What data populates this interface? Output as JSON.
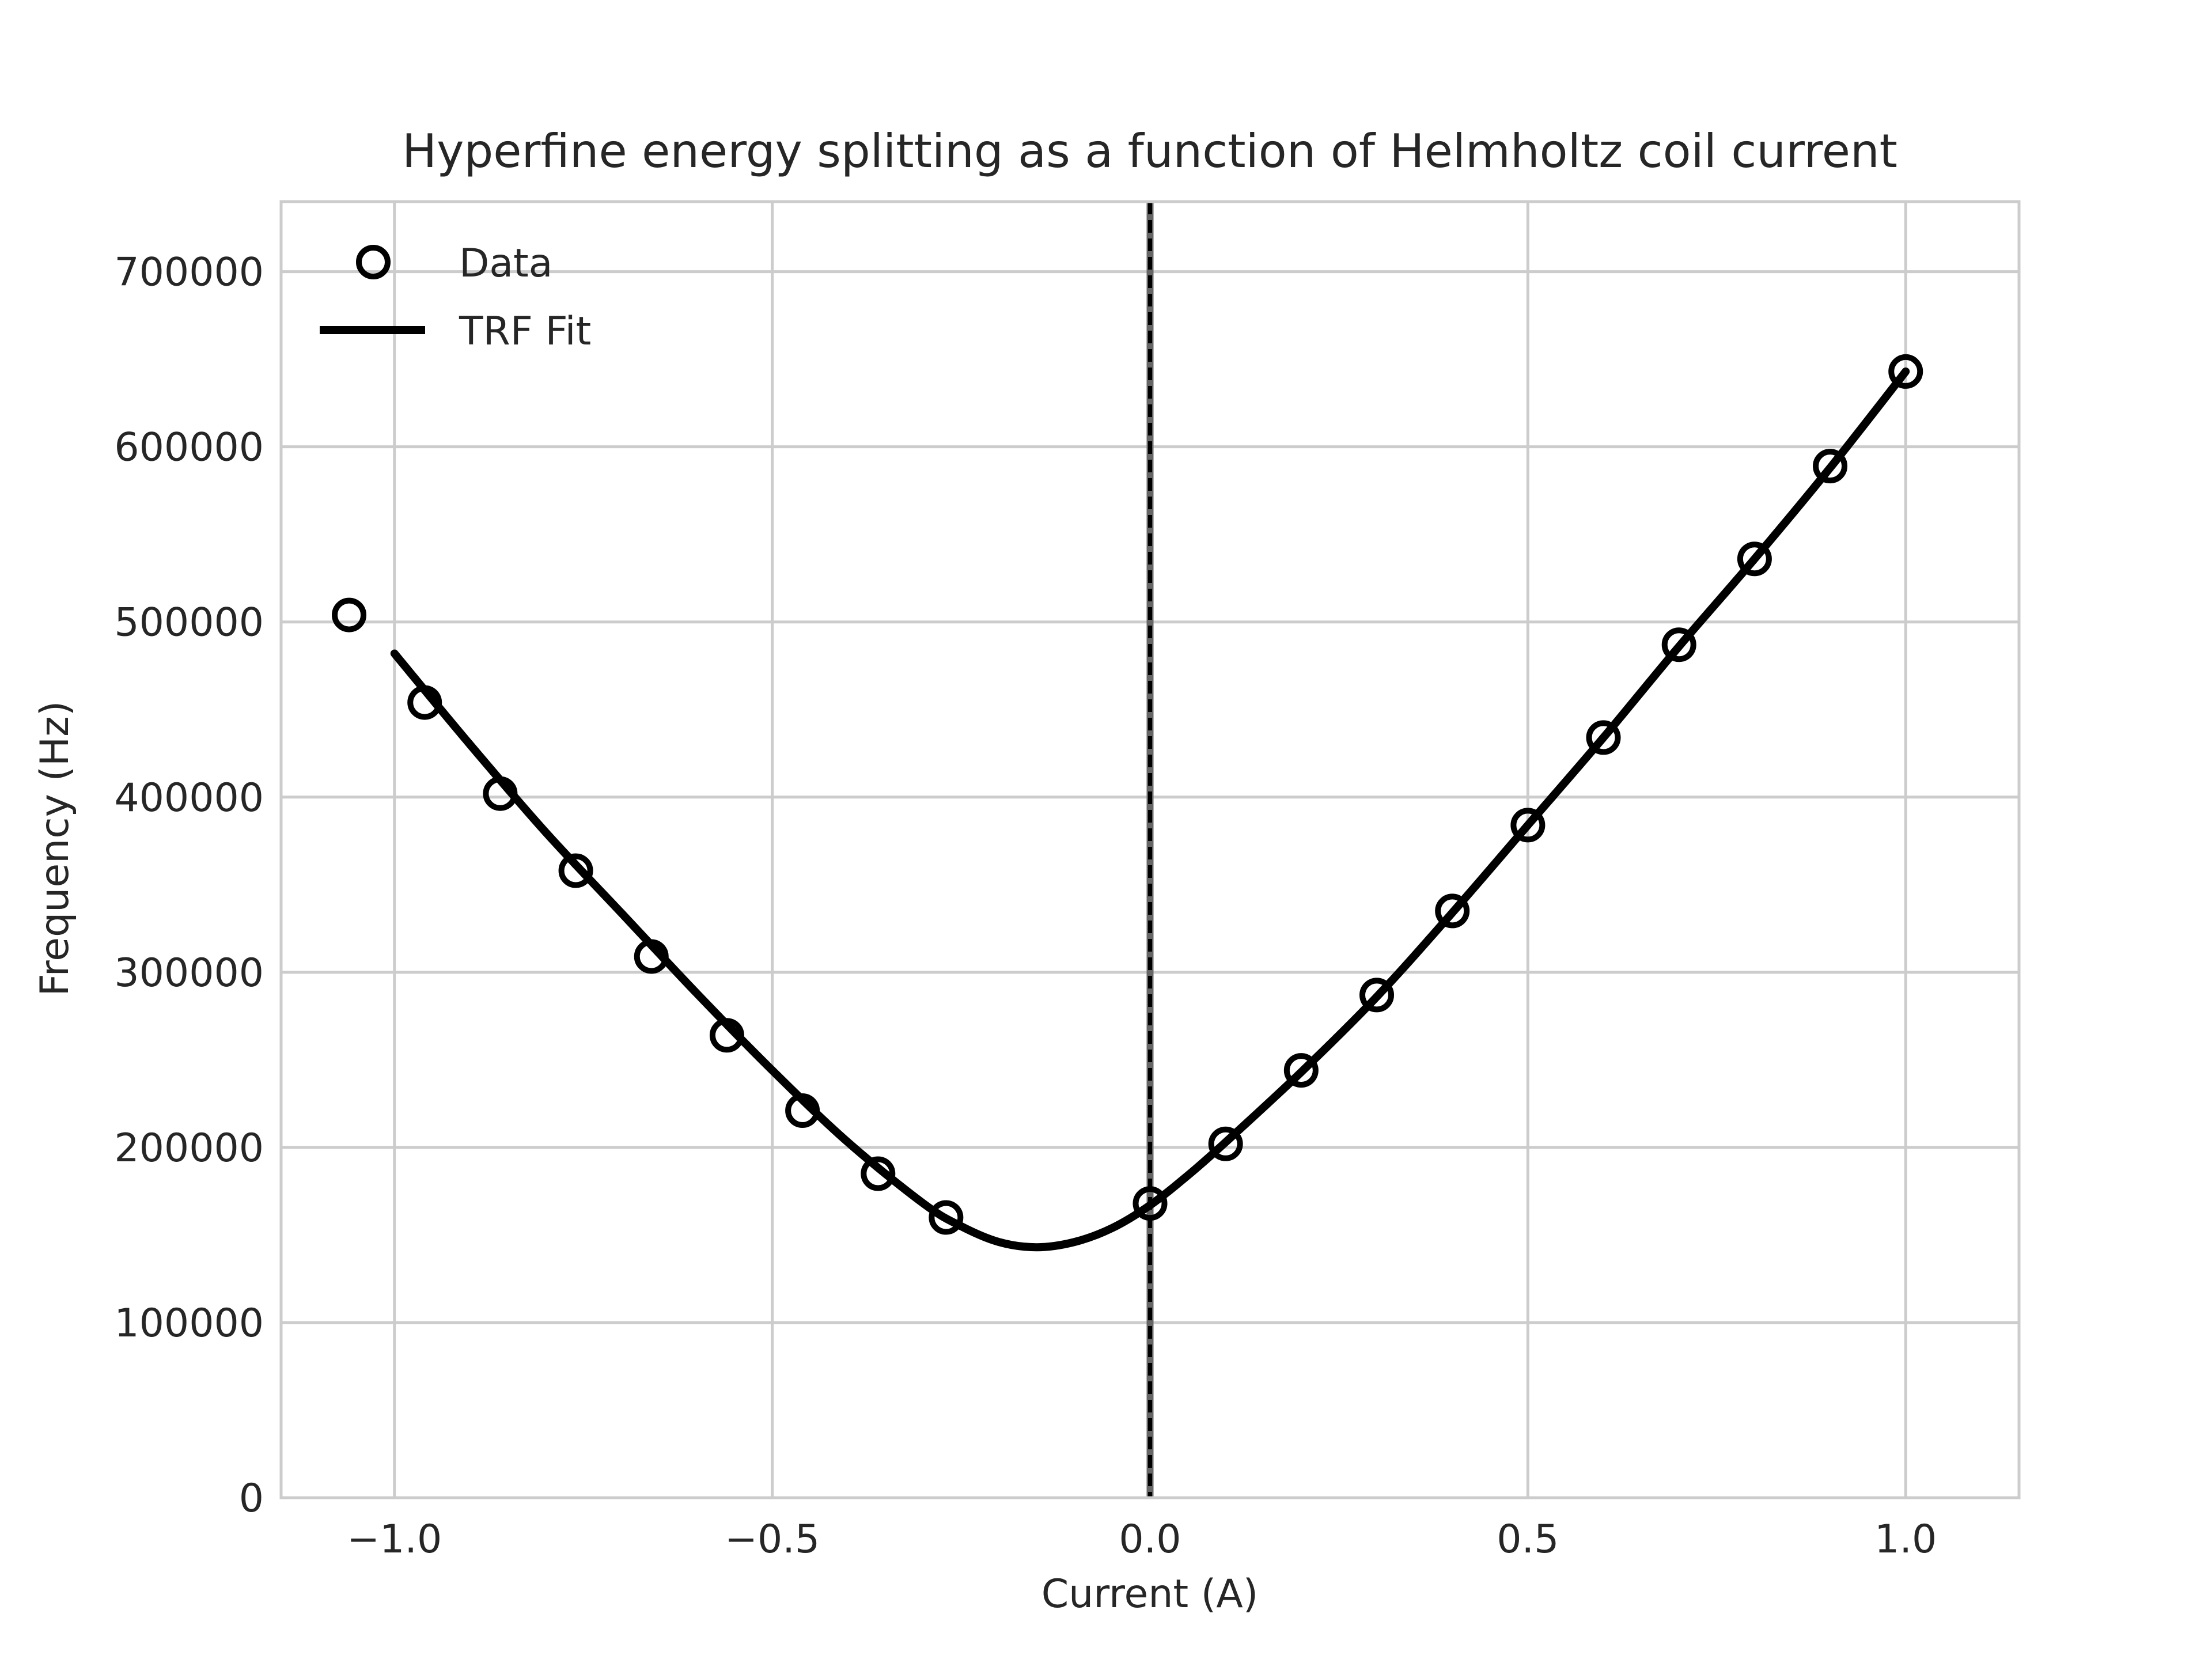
{
  "chart_data": {
    "type": "scatter",
    "title": "Hyperfine energy splitting as a function of Helmholtz coil current",
    "xlabel": "Current (A)",
    "ylabel": "Frequency (Hz)",
    "xlim": [
      -1.15,
      1.15
    ],
    "ylim": [
      0,
      740000
    ],
    "x_ticks": [
      -1.0,
      -0.5,
      0.0,
      0.5,
      1.0
    ],
    "x_tick_labels": [
      "−1.0",
      "−0.5",
      "0.0",
      "0.5",
      "1.0"
    ],
    "y_ticks": [
      0,
      100000,
      200000,
      300000,
      400000,
      500000,
      600000,
      700000
    ],
    "y_tick_labels": [
      "0",
      "100000",
      "200000",
      "300000",
      "400000",
      "500000",
      "600000",
      "700000"
    ],
    "grid": true,
    "legend_position": "top-left",
    "vertical_reference_line": {
      "x": 0.0,
      "style": "dashed"
    },
    "series": [
      {
        "name": "Data",
        "kind": "scatter",
        "marker": "open-circle",
        "color": "#000000",
        "x": [
          -1.06,
          -0.96,
          -0.86,
          -0.76,
          -0.66,
          -0.56,
          -0.46,
          -0.36,
          -0.27,
          0.0,
          0.1,
          0.2,
          0.3,
          0.4,
          0.5,
          0.6,
          0.7,
          0.8,
          0.9,
          1.0
        ],
        "y": [
          504000,
          454000,
          402000,
          358000,
          309000,
          264000,
          221000,
          185000,
          160000,
          168000,
          202000,
          244000,
          287000,
          335000,
          384000,
          434000,
          487000,
          536000,
          589000,
          643000
        ]
      },
      {
        "name": "TRF Fit",
        "kind": "line",
        "color": "#000000",
        "x": [
          -1.0,
          -0.9,
          -0.8,
          -0.7,
          -0.6,
          -0.5,
          -0.4,
          -0.3,
          -0.25,
          -0.2,
          -0.15,
          -0.1,
          -0.05,
          0.0,
          0.05,
          0.1,
          0.2,
          0.3,
          0.4,
          0.5,
          0.6,
          0.7,
          0.8,
          0.9,
          1.0
        ],
        "y": [
          482000,
          430000,
          380000,
          334000,
          288000,
          244000,
          203000,
          168000,
          155000,
          146000,
          143000,
          146000,
          154000,
          167000,
          184000,
          203000,
          243000,
          286000,
          334000,
          384000,
          434000,
          486000,
          536000,
          588000,
          643000
        ]
      }
    ]
  }
}
